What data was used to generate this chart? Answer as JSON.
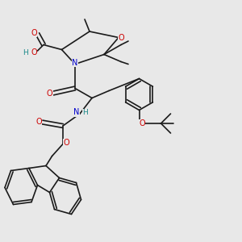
{
  "background_color": "#e8e8e8",
  "fig_width": 3.0,
  "fig_height": 3.0,
  "dpi": 100,
  "bond_color": "#1a1a1a",
  "bond_width": 1.2,
  "atom_colors": {
    "O": "#cc0000",
    "N": "#0000cc",
    "C": "#1a1a1a",
    "H": "#1a8888"
  },
  "font_size": 6.5
}
